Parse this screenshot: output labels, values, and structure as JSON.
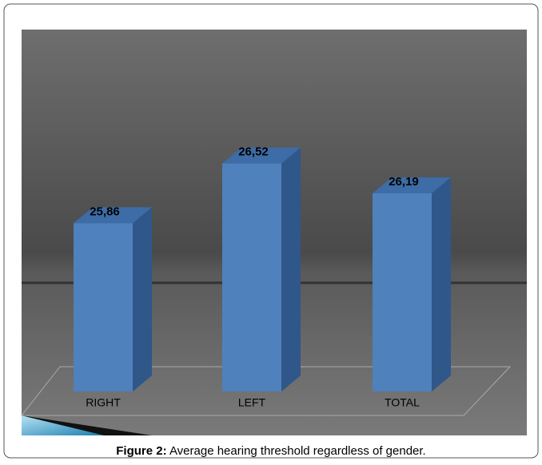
{
  "chart_data": {
    "type": "bar3d",
    "categories": [
      "RIGHT",
      "LEFT",
      "TOTAL"
    ],
    "values": [
      25.86,
      26.52,
      26.19
    ],
    "value_labels": [
      "25,86",
      "26,52",
      "26,19"
    ],
    "color": "#4f81bd",
    "ylim": [
      24,
      28
    ],
    "caption_label": "Figure 2:",
    "caption": "Average hearing threshold regardless of gender."
  }
}
